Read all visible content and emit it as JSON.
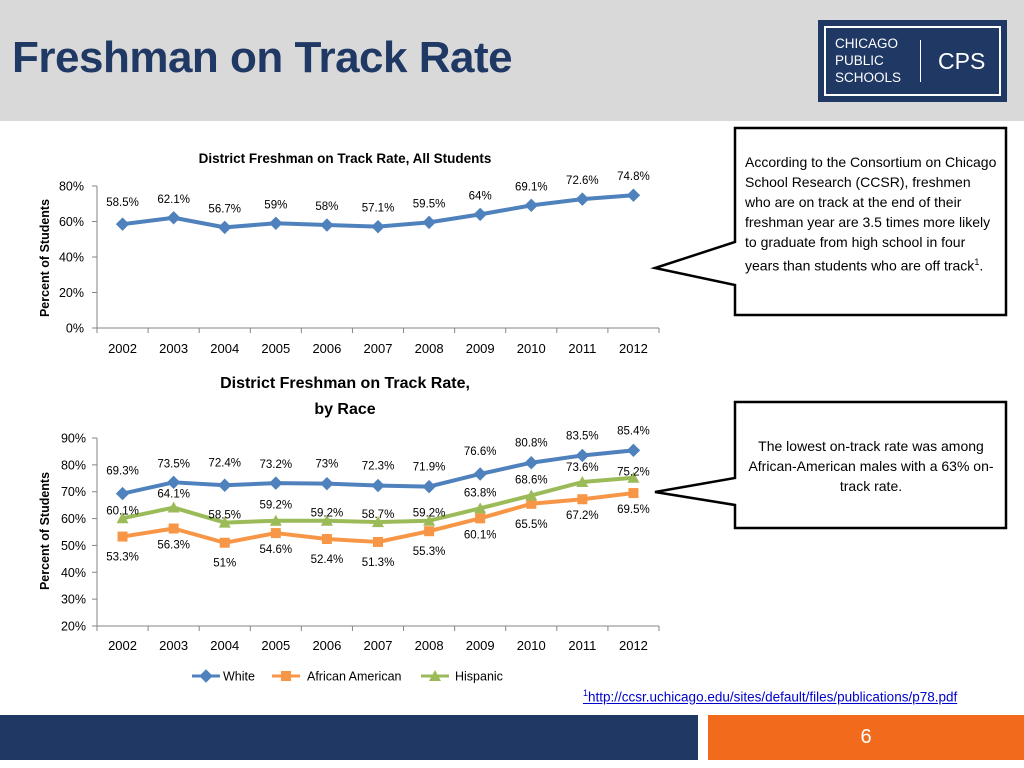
{
  "slide": {
    "title": "Freshman on Track Rate",
    "page_number": "6",
    "footnote_marker": "1",
    "footnote_url": "http://ccsr.uchicago.edu/sites/default/files/publications/p78.pdf"
  },
  "logo": {
    "line1": "CHICAGO",
    "line2": "PUBLIC",
    "line3": "SCHOOLS",
    "abbr": "CPS"
  },
  "callouts": {
    "top_before": " According to the Consortium on Chicago School Research (CCSR), freshmen who are on track at the end of their freshman year are 3.5 times more likely to graduate from high school in four years than students who are off track",
    "top_sup": "1",
    "top_after": ".",
    "bottom": "The lowest on-track rate was among African-American males with a 63% on-track rate."
  },
  "colors": {
    "header_bg": "#d9d9d9",
    "title": "#1f3864",
    "footer_blue": "#1f3864",
    "footer_orange": "#f26b1d",
    "white_series": "#4f81bd",
    "african_american_series": "#f79646",
    "hispanic_series": "#9bbb59"
  },
  "chart_data": [
    {
      "type": "line",
      "title": "District Freshman on Track Rate, All Students",
      "ylabel": "Percent of Students",
      "xlabel": "",
      "x": [
        "2002",
        "2003",
        "2004",
        "2005",
        "2006",
        "2007",
        "2008",
        "2009",
        "2010",
        "2011",
        "2012"
      ],
      "ylim": [
        0,
        80
      ],
      "yticks": [
        0,
        20,
        40,
        60,
        80
      ],
      "ytick_labels": [
        "0%",
        "20%",
        "40%",
        "60%",
        "80%"
      ],
      "grid": false,
      "legend": "none",
      "series": [
        {
          "color": "#4f81bd",
          "marker": "diamond",
          "values": [
            58.5,
            62.1,
            56.7,
            59,
            58,
            57.1,
            59.5,
            64,
            69.1,
            72.6,
            74.8
          ],
          "labels": [
            "58.5%",
            "62.1%",
            "56.7%",
            "59%",
            "58%",
            "57.1%",
            "59.5%",
            "64%",
            "69.1%",
            "72.6%",
            "74.8%"
          ]
        }
      ]
    },
    {
      "type": "line",
      "title": "District Freshman on Track Rate, by Race",
      "title_lines": [
        "District Freshman on Track Rate,",
        "by Race"
      ],
      "ylabel": "Percent of Students",
      "xlabel": "",
      "x": [
        "2002",
        "2003",
        "2004",
        "2005",
        "2006",
        "2007",
        "2008",
        "2009",
        "2010",
        "2011",
        "2012"
      ],
      "ylim": [
        20,
        90
      ],
      "yticks": [
        20,
        30,
        40,
        50,
        60,
        70,
        80,
        90
      ],
      "ytick_labels": [
        "20%",
        "30%",
        "40%",
        "50%",
        "60%",
        "70%",
        "80%",
        "90%"
      ],
      "grid": false,
      "legend": "bottom",
      "series": [
        {
          "name": "White",
          "color": "#4f81bd",
          "marker": "diamond",
          "values": [
            69.3,
            73.5,
            72.4,
            73.2,
            73,
            72.3,
            71.9,
            76.6,
            80.8,
            83.5,
            85.4
          ],
          "labels": [
            "69.3%",
            "73.5%",
            "72.4%",
            "73.2%",
            "73%",
            "72.3%",
            "71.9%",
            "76.6%",
            "80.8%",
            "83.5%",
            "85.4%"
          ]
        },
        {
          "name": "African American",
          "color": "#f79646",
          "marker": "square",
          "values": [
            53.3,
            56.3,
            51,
            54.6,
            52.4,
            51.3,
            55.3,
            60.1,
            65.5,
            67.2,
            69.5
          ],
          "labels": [
            "53.3%",
            "56.3%",
            "51%",
            "54.6%",
            "52.4%",
            "51.3%",
            "55.3%",
            "60.1%",
            "65.5%",
            "67.2%",
            "69.5%"
          ]
        },
        {
          "name": "Hispanic",
          "color": "#9bbb59",
          "marker": "triangle",
          "values": [
            60.1,
            64.1,
            58.5,
            59.2,
            59.2,
            58.7,
            59.2,
            63.8,
            68.6,
            73.6,
            75.2
          ],
          "labels": [
            "60.1%",
            "64.1%",
            "58.5%",
            "59.2%",
            "59.2%",
            "58.7%",
            "59.2%",
            "63.8%",
            "68.6%",
            "73.6%",
            "75.2%"
          ]
        }
      ]
    }
  ]
}
